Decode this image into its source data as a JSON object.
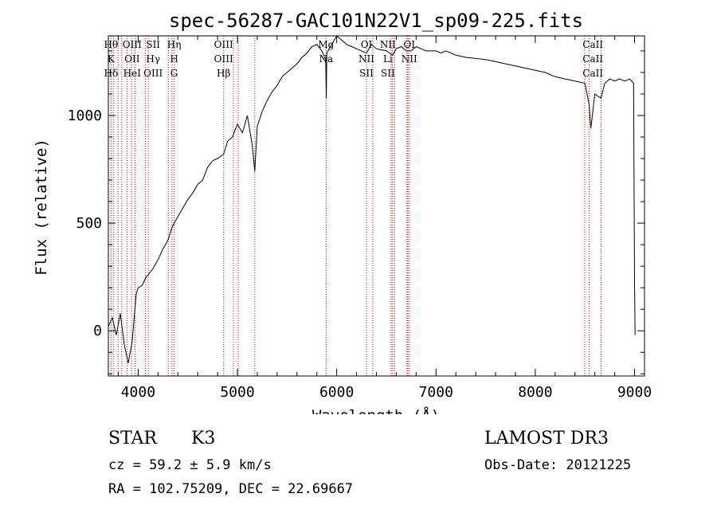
{
  "chart_data": {
    "type": "line",
    "title": "spec-56287-GAC101N22V1_sp09-225.fits",
    "xlabel": "Wavelength (Å)",
    "ylabel": "Flux (relative)",
    "xlim": [
      3700,
      9100
    ],
    "ylim": [
      -210,
      1370
    ],
    "xticks": [
      4000,
      5000,
      6000,
      7000,
      8000,
      9000
    ],
    "yticks": [
      0,
      500,
      1000
    ],
    "series": [
      {
        "name": "spectrum",
        "x": [
          3700,
          3740,
          3780,
          3820,
          3860,
          3900,
          3940,
          3980,
          4000,
          4040,
          4080,
          4100,
          4150,
          4200,
          4250,
          4300,
          4340,
          4400,
          4450,
          4500,
          4550,
          4600,
          4650,
          4700,
          4750,
          4800,
          4861,
          4900,
          4950,
          5000,
          5050,
          5100,
          5150,
          5175,
          5200,
          5250,
          5300,
          5350,
          5400,
          5450,
          5500,
          5550,
          5600,
          5650,
          5700,
          5750,
          5800,
          5850,
          5889,
          5895,
          5900,
          5950,
          6000,
          6050,
          6100,
          6150,
          6200,
          6250,
          6300,
          6350,
          6400,
          6450,
          6500,
          6563,
          6600,
          6650,
          6700,
          6750,
          6800,
          6850,
          6900,
          6950,
          7000,
          7050,
          7100,
          7150,
          7200,
          7300,
          7400,
          7500,
          7600,
          7700,
          7800,
          7900,
          8000,
          8100,
          8200,
          8300,
          8400,
          8500,
          8542,
          8560,
          8600,
          8662,
          8700,
          8750,
          8800,
          8850,
          8900,
          8950,
          8990,
          9000,
          9005
        ],
        "y": [
          20,
          60,
          -20,
          80,
          -60,
          -150,
          -50,
          170,
          200,
          210,
          250,
          260,
          290,
          330,
          380,
          420,
          480,
          530,
          570,
          610,
          640,
          680,
          700,
          760,
          790,
          800,
          820,
          880,
          900,
          960,
          920,
          1000,
          860,
          740,
          950,
          1020,
          1070,
          1110,
          1140,
          1180,
          1200,
          1220,
          1240,
          1270,
          1290,
          1320,
          1330,
          1300,
          1260,
          1080,
          1290,
          1330,
          1370,
          1350,
          1330,
          1320,
          1310,
          1300,
          1290,
          1330,
          1310,
          1305,
          1300,
          1280,
          1310,
          1320,
          1300,
          1300,
          1320,
          1310,
          1300,
          1300,
          1300,
          1290,
          1300,
          1290,
          1280,
          1270,
          1265,
          1260,
          1250,
          1240,
          1230,
          1220,
          1210,
          1200,
          1180,
          1170,
          1160,
          1150,
          1050,
          940,
          1100,
          1080,
          1150,
          1170,
          1160,
          1170,
          1160,
          1170,
          1150,
          220,
          -20
        ]
      }
    ],
    "line_groups": [
      {
        "wavelengths": [
          3727,
          3750,
          3798,
          3835,
          3889,
          3934,
          3969,
          4072,
          4102,
          4304,
          4341,
          4363
        ],
        "labels": [
          "Hθ",
          "K",
          "Hδ",
          "OIII",
          "OII",
          "HeI",
          "SII",
          "Hγ",
          "OIII",
          "Hη",
          "H",
          "G"
        ]
      },
      {
        "wavelengths": [
          4861,
          4959,
          5007,
          5175,
          5893
        ],
        "labels": [
          "OIII",
          "OIII",
          "Hβ",
          "Mg",
          "Na"
        ]
      },
      {
        "wavelengths": [
          6300,
          6364,
          6548,
          6563,
          6583,
          6707,
          6717,
          6731
        ],
        "labels": [
          "OI",
          "NII",
          "SII",
          "NII",
          "Li",
          "SII",
          "OI",
          "NII"
        ]
      },
      {
        "wavelengths": [
          8498,
          8542,
          8662
        ],
        "labels": [
          "CaII",
          "CaII",
          "CaII"
        ]
      }
    ]
  },
  "info": {
    "object_class": "STAR",
    "subclass": "K3",
    "survey": "LAMOST DR3",
    "cz": "cz = 59.2 ± 5.9 km/s",
    "obs_date": "Obs-Date: 20121225",
    "coords": "RA = 102.75209, DEC =  22.69667"
  }
}
